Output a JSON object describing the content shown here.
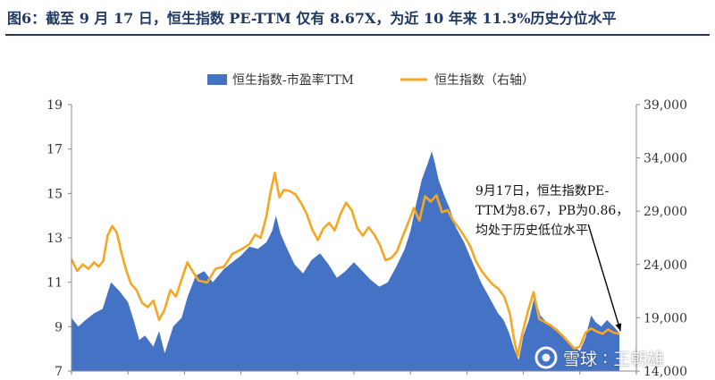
{
  "figure_title": "图6：截至 9 月 17 日，恒生指数 PE-TTM 仅有 8.67X，为近 10 年来 11.3%历史分位水平",
  "watermark": {
    "logo_icon": "snowball-logo-icon",
    "site": "雪球",
    "author": "王朝雄"
  },
  "colors": {
    "title": "#1f3864",
    "pe_fill": "#4472c4",
    "index_line": "#f5a623",
    "axis": "#888888",
    "text": "#333333"
  },
  "chart_data": {
    "type": "area",
    "title": "",
    "legend_position": "top-center",
    "grid": false,
    "x_range": [
      0,
      10
    ],
    "x_ticks": [
      0,
      1,
      2,
      3,
      4,
      5,
      6,
      7,
      8,
      9,
      10
    ],
    "y_left": {
      "range": [
        7,
        19
      ],
      "ticks": [
        "19",
        "17",
        "15",
        "13",
        "11",
        "9",
        "7"
      ]
    },
    "y_right": {
      "range": [
        14000,
        39000
      ],
      "ticks": [
        "39,000",
        "34,000",
        "29,000",
        "24,000",
        "19,000",
        "14,000"
      ]
    },
    "series": [
      {
        "name": "恒生指数-市盈率TTM",
        "type": "area",
        "axis": "left",
        "points": [
          [
            0.0,
            9.4
          ],
          [
            0.12,
            9.0
          ],
          [
            0.25,
            9.3
          ],
          [
            0.4,
            9.6
          ],
          [
            0.55,
            9.8
          ],
          [
            0.7,
            11.0
          ],
          [
            0.85,
            10.6
          ],
          [
            1.0,
            10.1
          ],
          [
            1.1,
            9.3
          ],
          [
            1.2,
            8.4
          ],
          [
            1.3,
            8.6
          ],
          [
            1.45,
            8.1
          ],
          [
            1.55,
            8.8
          ],
          [
            1.65,
            7.8
          ],
          [
            1.8,
            9.0
          ],
          [
            1.95,
            9.4
          ],
          [
            2.05,
            10.3
          ],
          [
            2.2,
            11.3
          ],
          [
            2.35,
            11.5
          ],
          [
            2.5,
            11.0
          ],
          [
            2.7,
            11.6
          ],
          [
            2.85,
            11.9
          ],
          [
            3.0,
            12.2
          ],
          [
            3.15,
            12.6
          ],
          [
            3.3,
            12.5
          ],
          [
            3.45,
            12.8
          ],
          [
            3.55,
            13.3
          ],
          [
            3.62,
            14.0
          ],
          [
            3.7,
            13.2
          ],
          [
            3.8,
            12.6
          ],
          [
            3.95,
            11.8
          ],
          [
            4.1,
            11.4
          ],
          [
            4.25,
            12.0
          ],
          [
            4.4,
            12.3
          ],
          [
            4.55,
            11.8
          ],
          [
            4.7,
            11.2
          ],
          [
            4.85,
            11.5
          ],
          [
            5.0,
            11.9
          ],
          [
            5.15,
            11.5
          ],
          [
            5.3,
            11.1
          ],
          [
            5.45,
            10.8
          ],
          [
            5.6,
            11.0
          ],
          [
            5.75,
            11.7
          ],
          [
            5.9,
            12.5
          ],
          [
            6.0,
            13.3
          ],
          [
            6.1,
            14.5
          ],
          [
            6.2,
            15.6
          ],
          [
            6.3,
            16.3
          ],
          [
            6.38,
            16.9
          ],
          [
            6.44,
            16.3
          ],
          [
            6.5,
            15.6
          ],
          [
            6.6,
            14.9
          ],
          [
            6.7,
            14.3
          ],
          [
            6.8,
            13.5
          ],
          [
            6.95,
            12.8
          ],
          [
            7.1,
            11.9
          ],
          [
            7.25,
            11.0
          ],
          [
            7.4,
            10.3
          ],
          [
            7.55,
            9.6
          ],
          [
            7.65,
            9.3
          ],
          [
            7.75,
            8.7
          ],
          [
            7.85,
            7.9
          ],
          [
            7.92,
            7.5
          ],
          [
            8.0,
            8.6
          ],
          [
            8.1,
            9.3
          ],
          [
            8.2,
            10.4
          ],
          [
            8.3,
            9.5
          ],
          [
            8.45,
            9.1
          ],
          [
            8.6,
            8.9
          ],
          [
            8.75,
            8.4
          ],
          [
            8.9,
            8.1
          ],
          [
            9.0,
            7.9
          ],
          [
            9.1,
            8.5
          ],
          [
            9.2,
            9.5
          ],
          [
            9.28,
            9.2
          ],
          [
            9.38,
            9.0
          ],
          [
            9.48,
            9.3
          ],
          [
            9.6,
            9.0
          ],
          [
            9.7,
            8.7
          ]
        ]
      },
      {
        "name": "恒生指数（右轴）",
        "type": "line",
        "axis": "right",
        "points": [
          [
            0.0,
            24500
          ],
          [
            0.1,
            23400
          ],
          [
            0.2,
            24000
          ],
          [
            0.3,
            23600
          ],
          [
            0.4,
            24200
          ],
          [
            0.48,
            23800
          ],
          [
            0.56,
            24300
          ],
          [
            0.64,
            26700
          ],
          [
            0.72,
            27600
          ],
          [
            0.8,
            27000
          ],
          [
            0.88,
            25200
          ],
          [
            0.96,
            23600
          ],
          [
            1.05,
            22200
          ],
          [
            1.15,
            21600
          ],
          [
            1.25,
            20400
          ],
          [
            1.35,
            20000
          ],
          [
            1.45,
            20600
          ],
          [
            1.55,
            18800
          ],
          [
            1.65,
            19800
          ],
          [
            1.75,
            21600
          ],
          [
            1.85,
            21000
          ],
          [
            1.95,
            22600
          ],
          [
            2.05,
            24200
          ],
          [
            2.15,
            23300
          ],
          [
            2.25,
            22500
          ],
          [
            2.4,
            22300
          ],
          [
            2.55,
            23600
          ],
          [
            2.7,
            23800
          ],
          [
            2.85,
            25000
          ],
          [
            3.0,
            25400
          ],
          [
            3.15,
            25900
          ],
          [
            3.25,
            26800
          ],
          [
            3.35,
            26500
          ],
          [
            3.45,
            28500
          ],
          [
            3.52,
            30700
          ],
          [
            3.6,
            32600
          ],
          [
            3.68,
            30300
          ],
          [
            3.76,
            31000
          ],
          [
            3.86,
            30900
          ],
          [
            3.96,
            30600
          ],
          [
            4.06,
            29800
          ],
          [
            4.16,
            28800
          ],
          [
            4.26,
            27300
          ],
          [
            4.36,
            26300
          ],
          [
            4.46,
            27400
          ],
          [
            4.56,
            27900
          ],
          [
            4.66,
            27200
          ],
          [
            4.76,
            28700
          ],
          [
            4.86,
            29800
          ],
          [
            4.96,
            29100
          ],
          [
            5.06,
            27400
          ],
          [
            5.16,
            26700
          ],
          [
            5.26,
            27500
          ],
          [
            5.36,
            26800
          ],
          [
            5.46,
            25800
          ],
          [
            5.56,
            24400
          ],
          [
            5.66,
            24600
          ],
          [
            5.76,
            25200
          ],
          [
            5.86,
            26600
          ],
          [
            5.96,
            27900
          ],
          [
            6.06,
            29300
          ],
          [
            6.16,
            28100
          ],
          [
            6.26,
            30400
          ],
          [
            6.36,
            29900
          ],
          [
            6.46,
            30500
          ],
          [
            6.56,
            28900
          ],
          [
            6.66,
            29100
          ],
          [
            6.76,
            28100
          ],
          [
            6.86,
            27400
          ],
          [
            6.96,
            26600
          ],
          [
            7.06,
            25700
          ],
          [
            7.16,
            24300
          ],
          [
            7.26,
            23400
          ],
          [
            7.36,
            22700
          ],
          [
            7.46,
            22100
          ],
          [
            7.56,
            21700
          ],
          [
            7.66,
            21000
          ],
          [
            7.76,
            19400
          ],
          [
            7.84,
            16800
          ],
          [
            7.9,
            15400
          ],
          [
            7.98,
            17500
          ],
          [
            8.08,
            19600
          ],
          [
            8.18,
            21400
          ],
          [
            8.28,
            18900
          ],
          [
            8.38,
            18600
          ],
          [
            8.48,
            18300
          ],
          [
            8.6,
            17800
          ],
          [
            8.7,
            17300
          ],
          [
            8.8,
            16700
          ],
          [
            8.9,
            16100
          ],
          [
            9.0,
            16300
          ],
          [
            9.1,
            17600
          ],
          [
            9.2,
            18000
          ],
          [
            9.3,
            17700
          ],
          [
            9.4,
            17500
          ],
          [
            9.5,
            17900
          ],
          [
            9.6,
            17600
          ],
          [
            9.7,
            17500
          ]
        ]
      }
    ],
    "annotations": [
      {
        "lines": [
          "9月17日，恒生指数PE-",
          "TTM为8.67，PB为0.86，",
          "均处于历史低位水平"
        ],
        "arrow_to": [
          9.72,
          8.8
        ],
        "arrow_from": [
          9.15,
          13.6
        ]
      }
    ]
  }
}
